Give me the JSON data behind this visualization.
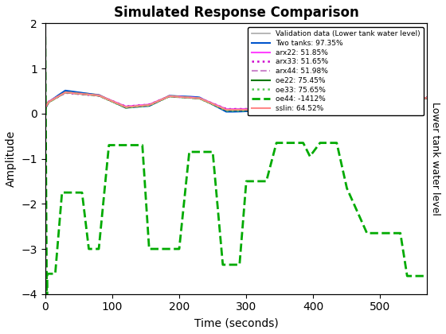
{
  "title": "Simulated Response Comparison",
  "xlabel": "Time (seconds)",
  "ylabel_left": "Amplitude",
  "ylabel_right": "Lower tank water level",
  "xlim": [
    0,
    570
  ],
  "ylim": [
    -4,
    2
  ],
  "yticks": [
    -4,
    -3,
    -2,
    -1,
    0,
    1,
    2
  ],
  "xticks": [
    0,
    100,
    200,
    300,
    400,
    500
  ],
  "legend_entries": [
    "Validation data (Lower tank water level)",
    "Two tanks: 97.35%",
    "arx22: 51.85%",
    "arx33: 51.65%",
    "arx44: 51.98%",
    "oe22: 75.45%",
    "oe33: 75.65%",
    "oe44: -1412%",
    "sslin: 64.52%"
  ],
  "line_styles": [
    {
      "color": "#aaaaaa",
      "ls": "-",
      "lw": 1.2
    },
    {
      "color": "#0055cc",
      "ls": "-",
      "lw": 1.5
    },
    {
      "color": "#ff44ff",
      "ls": "-",
      "lw": 1.5
    },
    {
      "color": "#cc00cc",
      "ls": ":",
      "lw": 1.8
    },
    {
      "color": "#cc88cc",
      "ls": "--",
      "lw": 1.5
    },
    {
      "color": "#007700",
      "ls": "-",
      "lw": 1.5
    },
    {
      "color": "#55cc55",
      "ls": ":",
      "lw": 1.8
    },
    {
      "color": "#00aa00",
      "ls": "--",
      "lw": 2.0
    },
    {
      "color": "#ff8888",
      "ls": "-",
      "lw": 1.5
    }
  ]
}
